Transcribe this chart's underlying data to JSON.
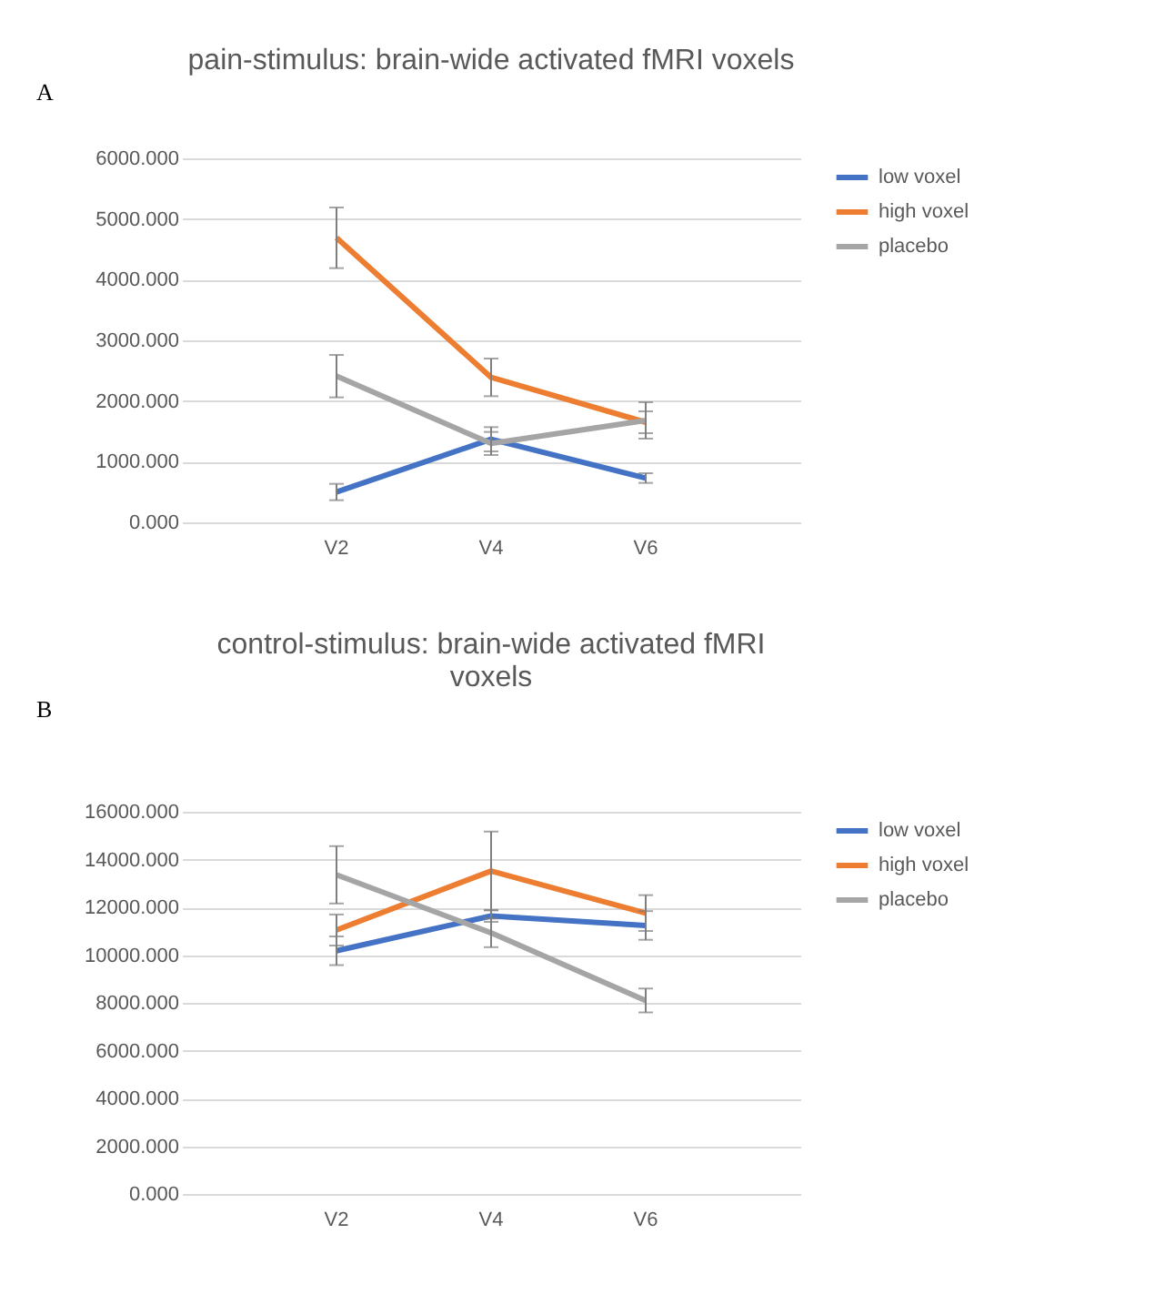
{
  "chart_data": [
    {
      "type": "line",
      "title": "pain-stimulus: brain-wide activated fMRI voxels",
      "annotations": [
        "A"
      ],
      "categories": [
        "V2",
        "V4",
        "V6"
      ],
      "series": [
        {
          "name": "low voxel",
          "color": "#4472c4",
          "values": [
            500,
            1370,
            730
          ],
          "errors": [
            135,
            200,
            80
          ]
        },
        {
          "name": "high voxel",
          "color": "#ed7d31",
          "values": [
            4690,
            2390,
            1650
          ],
          "errors": [
            500,
            310,
            180
          ]
        },
        {
          "name": "placebo",
          "color": "#a5a5a5",
          "values": [
            2410,
            1300,
            1680
          ],
          "errors": [
            350,
            190,
            300
          ]
        }
      ],
      "ylim": [
        0,
        6000
      ],
      "yticks": [
        {
          "value": 0,
          "label": "0.000"
        },
        {
          "value": 1000,
          "label": "1000.000"
        },
        {
          "value": 2000,
          "label": "2000.000"
        },
        {
          "value": 3000,
          "label": "3000.000"
        },
        {
          "value": 4000,
          "label": "4000.000"
        },
        {
          "value": 5000,
          "label": "5000.000"
        },
        {
          "value": 6000,
          "label": "6000.000"
        }
      ],
      "grid": "y",
      "legend": "right",
      "marker": "none",
      "line_style": "solid"
    },
    {
      "type": "line",
      "title": "control-stimulus: brain-wide activated fMRI voxels",
      "annotations": [
        "B"
      ],
      "categories": [
        "V2",
        "V4",
        "V6"
      ],
      "series": [
        {
          "name": "low voxel",
          "color": "#4472c4",
          "values": [
            10180,
            11640,
            11240
          ],
          "errors": [
            600,
            250,
            600
          ]
        },
        {
          "name": "high voxel",
          "color": "#ed7d31",
          "values": [
            11050,
            13520,
            11760
          ],
          "errors": [
            650,
            1650,
            750
          ]
        },
        {
          "name": "placebo",
          "color": "#a5a5a5",
          "values": [
            13360,
            10930,
            8100
          ],
          "errors": [
            1200,
            600,
            500
          ]
        }
      ],
      "ylim": [
        0,
        16000
      ],
      "yticks": [
        {
          "value": 0,
          "label": "0.000"
        },
        {
          "value": 2000,
          "label": "2000.000"
        },
        {
          "value": 4000,
          "label": "4000.000"
        },
        {
          "value": 6000,
          "label": "6000.000"
        },
        {
          "value": 8000,
          "label": "8000.000"
        },
        {
          "value": 10000,
          "label": "10000.000"
        },
        {
          "value": 12000,
          "label": "12000.000"
        },
        {
          "value": 14000,
          "label": "14000.000"
        },
        {
          "value": 16000,
          "label": "16000.000"
        }
      ],
      "grid": "y",
      "legend": "right",
      "marker": "none",
      "line_style": "solid"
    }
  ]
}
